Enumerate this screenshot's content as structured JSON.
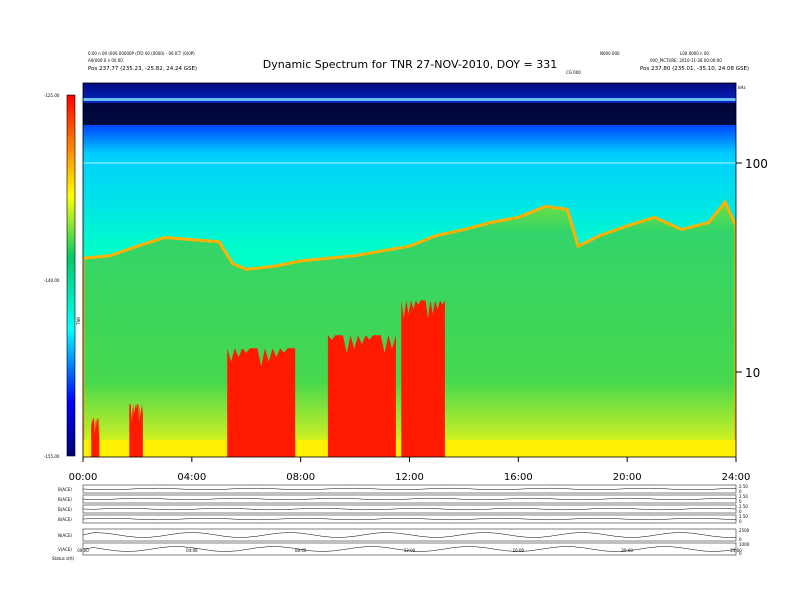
{
  "header": {
    "left_lines": [
      "0.00 n 00 (000 00000P (ITO 00 (0000) - 00 ICT (0)0P)",
      "A0(000 0 n 00 00",
      "Pos   237.77 (235.23, -25.82, 24.24 GSE)"
    ],
    "right_lines": [
      "N000 000",
      "L00 0000 n 00",
      "000_PICTURE: 2010-11-28 00:00:00",
      "Pos   237.80 (235.01, -35.10, 24.08 GSE)"
    ],
    "marker": "CG 000"
  },
  "chart_data": [
    {
      "type": "heatmap",
      "title": "Dynamic Spectrum for TNR 27-NOV-2010, DOY = 331",
      "xlabel": "",
      "ylabel": "",
      "x_ticks": [
        "00:00",
        "04:00",
        "08:00",
        "12:00",
        "16:00",
        "20:00",
        "24:00"
      ],
      "x_range_hours": [
        0,
        24
      ],
      "y_scale": "log",
      "y_tick_labels": [
        "100",
        "10"
      ],
      "y_unit": "kHz",
      "colorbar": {
        "ticks": [
          "-125.00",
          "-140.00",
          "-155.00"
        ],
        "range": [
          -155,
          -125
        ],
        "label": "TNR",
        "colors": [
          "#00007a",
          "#0000ff",
          "#00ffff",
          "#00cc66",
          "#ffff00",
          "#ff8000",
          "#ff0000"
        ]
      },
      "background_band": {
        "start_h": 0,
        "end_h": 24,
        "level": "green"
      },
      "upper_cutoff_kHz": [
        [
          0,
          35
        ],
        [
          1,
          36
        ],
        [
          2,
          40
        ],
        [
          3,
          44
        ],
        [
          4,
          43
        ],
        [
          5,
          42
        ],
        [
          5.5,
          33
        ],
        [
          6,
          31
        ],
        [
          7,
          32
        ],
        [
          8,
          34
        ],
        [
          9,
          35
        ],
        [
          10,
          36
        ],
        [
          11,
          38
        ],
        [
          12,
          40
        ],
        [
          13,
          45
        ],
        [
          14,
          48
        ],
        [
          15,
          52
        ],
        [
          16,
          55
        ],
        [
          17,
          62
        ],
        [
          17.8,
          60
        ],
        [
          18.2,
          40
        ],
        [
          19,
          45
        ],
        [
          20,
          50
        ],
        [
          21,
          55
        ],
        [
          22,
          48
        ],
        [
          23,
          52
        ],
        [
          23.6,
          65
        ],
        [
          24,
          50
        ]
      ],
      "bursts_red": [
        {
          "start_h": 0.3,
          "end_h": 0.6,
          "top_kHz": 6
        },
        {
          "start_h": 1.7,
          "end_h": 2.2,
          "top_kHz": 7
        },
        {
          "start_h": 5.3,
          "end_h": 7.8,
          "top_kHz": 13
        },
        {
          "start_h": 9.0,
          "end_h": 11.5,
          "top_kHz": 15
        },
        {
          "start_h": 11.7,
          "end_h": 13.3,
          "top_kHz": 22
        }
      ]
    },
    {
      "type": "line",
      "title": "",
      "x_ticks": [
        "00:00",
        "04:00",
        "08:00",
        "12:00",
        "16:00",
        "20:00",
        "24:00"
      ],
      "panels": [
        {
          "label": "B(ACE)",
          "r1": "2.50",
          "r2": "0"
        },
        {
          "label": "B(ACE)",
          "r1": "2.50",
          "r2": "0"
        },
        {
          "label": "B(ACE)",
          "r1": "2.50",
          "r2": "0"
        },
        {
          "label": "B(ACE)",
          "r1": "2.50",
          "r2": "0"
        },
        {
          "label": "N(ACE)",
          "r1": "2500",
          "r2": "0"
        },
        {
          "label": "V(ACE)",
          "r1": "1000",
          "r2": "0"
        }
      ],
      "footer": "Status  st(t)"
    }
  ]
}
